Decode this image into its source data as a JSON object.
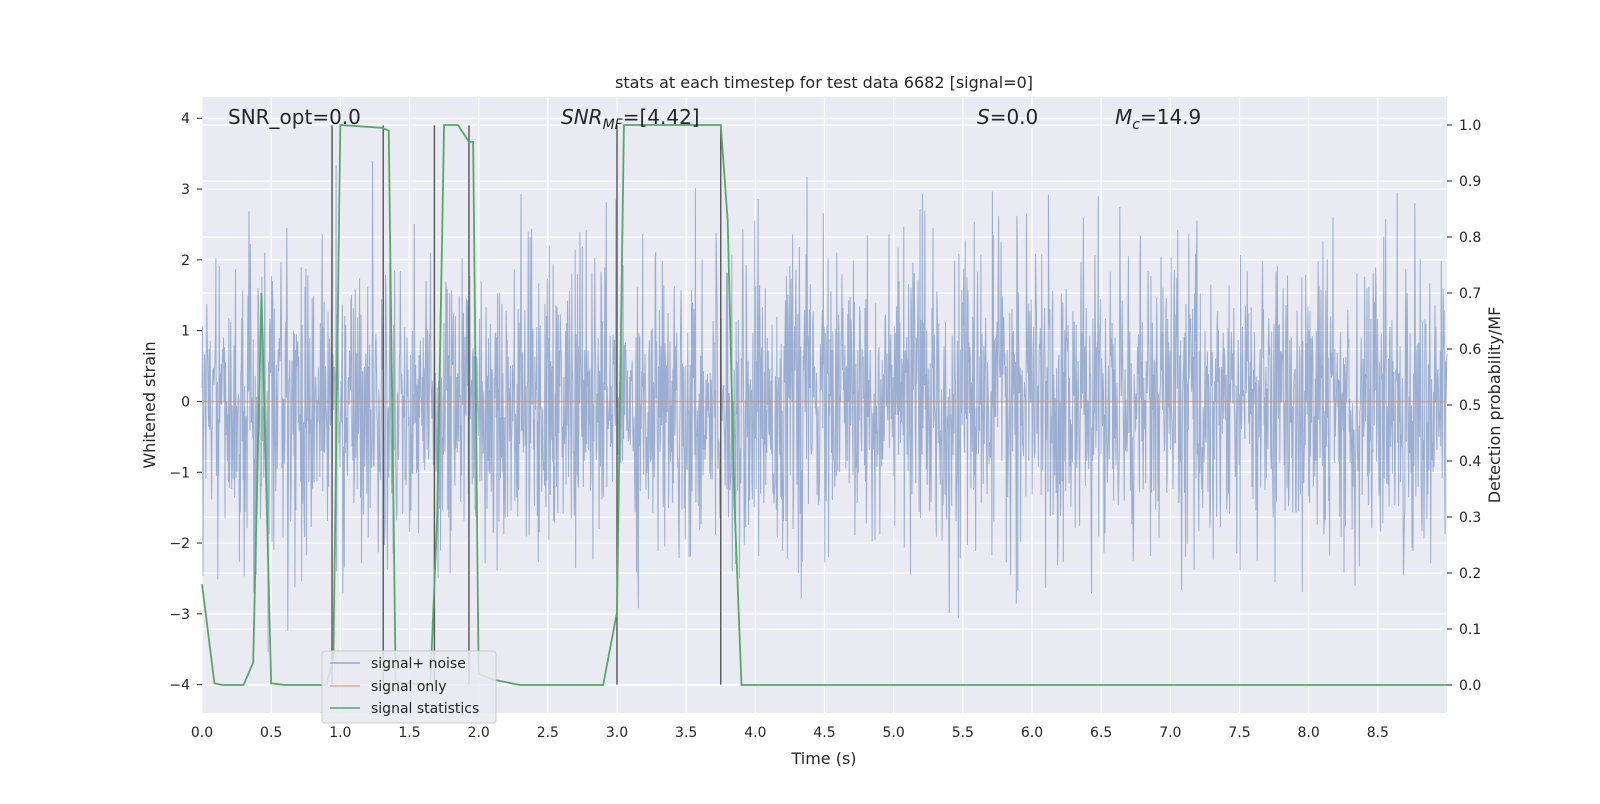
{
  "chart_data": {
    "type": "line",
    "title": "stats at each timestep for test data 6682 [signal=0]",
    "xlabel": "Time (s)",
    "ylabel": "Whitened strain",
    "y2label": "Detection probability/MF",
    "xlim": [
      0,
      9.0
    ],
    "ylim": [
      -4.4,
      4.3
    ],
    "y2lim": [
      -0.05,
      1.05
    ],
    "x_ticks": [
      "0.0",
      "0.5",
      "1.0",
      "1.5",
      "2.0",
      "2.5",
      "3.0",
      "3.5",
      "4.0",
      "4.5",
      "5.0",
      "5.5",
      "6.0",
      "6.5",
      "7.0",
      "7.5",
      "8.0",
      "8.5"
    ],
    "x_tick_values": [
      0,
      0.5,
      1.0,
      1.5,
      2.0,
      2.5,
      3.0,
      3.5,
      4.0,
      4.5,
      5.0,
      5.5,
      6.0,
      6.5,
      7.0,
      7.5,
      8.0,
      8.5
    ],
    "y_ticks": [
      "−4",
      "−3",
      "−2",
      "−1",
      "0",
      "1",
      "2",
      "3",
      "4"
    ],
    "y_tick_values": [
      -4,
      -3,
      -2,
      -1,
      0,
      1,
      2,
      3,
      4
    ],
    "y2_ticks": [
      "0.0",
      "0.1",
      "0.2",
      "0.3",
      "0.4",
      "0.5",
      "0.6",
      "0.7",
      "0.8",
      "0.9",
      "1.0"
    ],
    "y2_tick_values": [
      0,
      0.1,
      0.2,
      0.3,
      0.4,
      0.5,
      0.6,
      0.7,
      0.8,
      0.9,
      1.0
    ],
    "grid": true,
    "legend_position": "lower-left",
    "annotations": {
      "snr_opt": "SNR_opt=0.0",
      "snr_mf_main": "SNR",
      "snr_mf_sub": "MF",
      "snr_mf_value": "=[4.42]",
      "s_symbol": "S",
      "s_value": "=0.0",
      "mc_symbol": "M",
      "mc_sub": "c",
      "mc_value": "=14.9"
    },
    "series": [
      {
        "name": "signal+ noise",
        "color": "#4c72b0",
        "description_axis": "left",
        "noise_envelope": {
          "typical_abs": 2.0,
          "min": -3.7,
          "max": 3.4
        }
      },
      {
        "name": "signal only",
        "color": "#dd8452",
        "axis": "left",
        "x": [
          0,
          9.0
        ],
        "y": [
          0,
          0
        ]
      },
      {
        "name": "signal statistics",
        "color": "#55a868",
        "axis": "right",
        "x": [
          0.0,
          0.09,
          0.15,
          0.3,
          0.37,
          0.43,
          0.5,
          0.6,
          0.9,
          0.95,
          1.0,
          1.3,
          1.35,
          1.4,
          1.65,
          1.7,
          1.75,
          1.85,
          1.93,
          1.96,
          2.0,
          2.1,
          2.3,
          2.9,
          3.0,
          3.05,
          3.1,
          3.75,
          3.8,
          3.85,
          3.9,
          9.0
        ],
        "y": [
          0.18,
          0.003,
          0.0,
          0.0,
          0.04,
          0.7,
          0.003,
          0.0,
          0.0,
          0.05,
          1.0,
          0.995,
          0.99,
          0.005,
          0.0,
          0.3,
          1.0,
          1.0,
          0.97,
          0.97,
          0.02,
          0.01,
          0.0,
          0.0,
          0.13,
          1.0,
          1.0,
          1.0,
          0.83,
          0.32,
          0.0,
          0.0
        ]
      }
    ],
    "vertical_markers": [
      {
        "x": 0.94,
        "y_top": 3.9,
        "y_bottom": -4.0
      },
      {
        "x": 1.31,
        "y_top": 3.9,
        "y_bottom": -4.0
      },
      {
        "x": 1.68,
        "y_top": 3.9,
        "y_bottom": -4.0
      },
      {
        "x": 1.93,
        "y_top": 3.9,
        "y_bottom": -4.0
      },
      {
        "x": 3.0,
        "y_top": 3.9,
        "y_bottom": -4.0
      },
      {
        "x": 3.75,
        "y_top": 3.9,
        "y_bottom": -4.0
      }
    ]
  }
}
